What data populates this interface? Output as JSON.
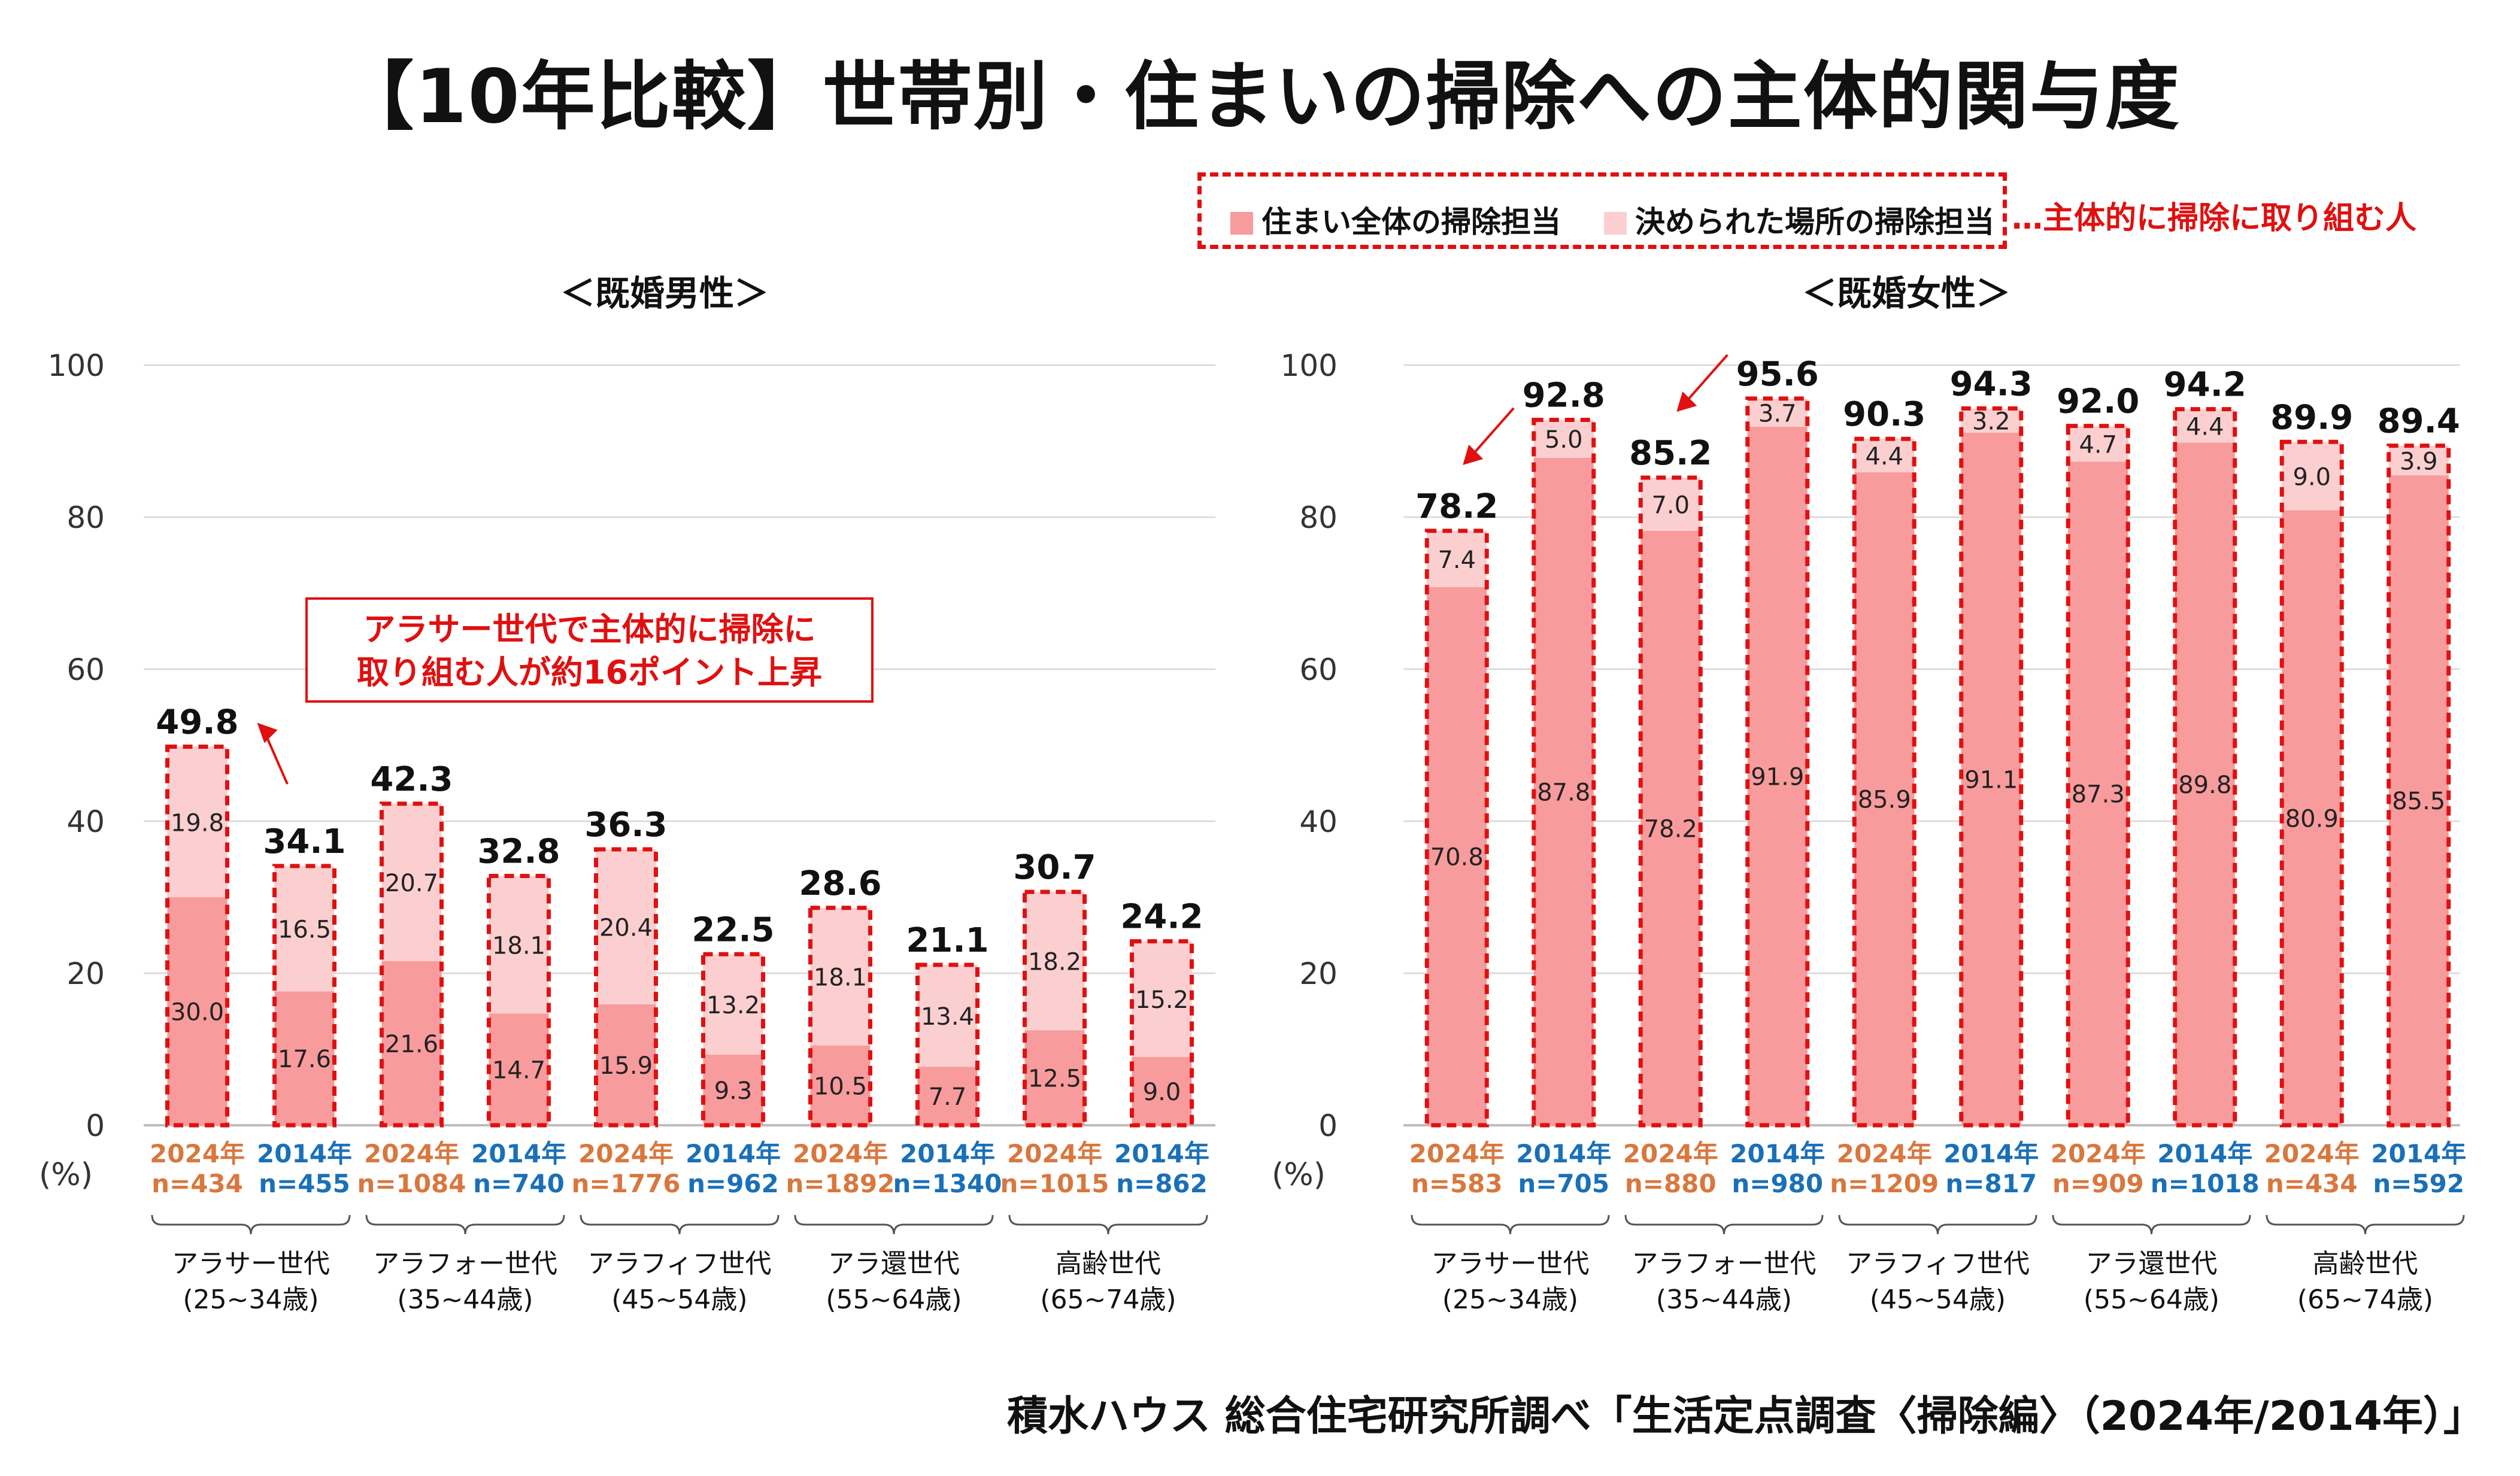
{
  "title": "【10年比較】世帯別・住まいの掃除への主体的関与度",
  "legend": {
    "items": [
      {
        "label": "住まい全体の掃除担当",
        "color": "#f79b9d"
      },
      {
        "label": "決められた場所の掃除担当",
        "color": "#fbcfd0"
      }
    ],
    "dashed_label": "…主体的に掃除に取り組む人",
    "dashed_color": "#e01010"
  },
  "source": "積水ハウス 総合住宅研究所調べ「生活定点調査〈掃除編〉（2024年/2014年）」",
  "colors": {
    "color_2024": "#d9773d",
    "color_2014": "#1a70b8",
    "annotation": "#e01010"
  },
  "annotation": {
    "line1": "アラサー世代で主体的に掃除に",
    "line2": "取り組む人が約16ポイント上昇"
  },
  "chart_data": [
    {
      "type": "bar",
      "stacked": true,
      "title": "＜既婚男性＞",
      "ylabel": "(%)",
      "ylim": [
        0,
        100
      ],
      "yticks": [
        "0",
        "20",
        "40",
        "60",
        "80",
        "100"
      ],
      "grid": true,
      "groups": [
        {
          "line1": "アラサー世代",
          "line2": "(25~34歳)"
        },
        {
          "line1": "アラフォー世代",
          "line2": "(35~44歳)"
        },
        {
          "line1": "アラフィフ世代",
          "line2": "(45~54歳)"
        },
        {
          "line1": "アラ還世代",
          "line2": "(55~64歳)"
        },
        {
          "line1": "高齢世代",
          "line2": "(65~74歳)"
        }
      ],
      "bars": [
        {
          "year": "2024年",
          "n": "n=434",
          "whole": 30.0,
          "place": 19.8,
          "total": 49.8,
          "whole_label": "30.0",
          "place_label": "19.8",
          "total_label": "49.8"
        },
        {
          "year": "2014年",
          "n": "n=455",
          "whole": 17.6,
          "place": 16.5,
          "total": 34.1,
          "whole_label": "17.6",
          "place_label": "16.5",
          "total_label": "34.1"
        },
        {
          "year": "2024年",
          "n": "n=1084",
          "whole": 21.6,
          "place": 20.7,
          "total": 42.3,
          "whole_label": "21.6",
          "place_label": "20.7",
          "total_label": "42.3"
        },
        {
          "year": "2014年",
          "n": "n=740",
          "whole": 14.7,
          "place": 18.1,
          "total": 32.8,
          "whole_label": "14.7",
          "place_label": "18.1",
          "total_label": "32.8"
        },
        {
          "year": "2024年",
          "n": "n=1776",
          "whole": 15.9,
          "place": 20.4,
          "total": 36.3,
          "whole_label": "15.9",
          "place_label": "20.4",
          "total_label": "36.3"
        },
        {
          "year": "2014年",
          "n": "n=962",
          "whole": 9.3,
          "place": 13.2,
          "total": 22.5,
          "whole_label": "9.3",
          "place_label": "13.2",
          "total_label": "22.5"
        },
        {
          "year": "2024年",
          "n": "n=1892",
          "whole": 10.5,
          "place": 18.1,
          "total": 28.6,
          "whole_label": "10.5",
          "place_label": "18.1",
          "total_label": "28.6"
        },
        {
          "year": "2014年",
          "n": "n=1340",
          "whole": 7.7,
          "place": 13.4,
          "total": 21.1,
          "whole_label": "7.7",
          "place_label": "13.4",
          "total_label": "21.1"
        },
        {
          "year": "2024年",
          "n": "n=1015",
          "whole": 12.5,
          "place": 18.2,
          "total": 30.7,
          "whole_label": "12.5",
          "place_label": "18.2",
          "total_label": "30.7"
        },
        {
          "year": "2014年",
          "n": "n=862",
          "whole": 9.0,
          "place": 15.2,
          "total": 24.2,
          "whole_label": "9.0",
          "place_label": "15.2",
          "total_label": "24.2"
        }
      ]
    },
    {
      "type": "bar",
      "stacked": true,
      "title": "＜既婚女性＞",
      "ylabel": "(%)",
      "ylim": [
        0,
        100
      ],
      "yticks": [
        "0",
        "20",
        "40",
        "60",
        "80",
        "100"
      ],
      "grid": true,
      "groups": [
        {
          "line1": "アラサー世代",
          "line2": "(25~34歳)"
        },
        {
          "line1": "アラフォー世代",
          "line2": "(35~44歳)"
        },
        {
          "line1": "アラフィフ世代",
          "line2": "(45~54歳)"
        },
        {
          "line1": "アラ還世代",
          "line2": "(55~64歳)"
        },
        {
          "line1": "高齢世代",
          "line2": "(65~74歳)"
        }
      ],
      "bars": [
        {
          "year": "2024年",
          "n": "n=583",
          "whole": 70.8,
          "place": 7.4,
          "total": 78.2,
          "whole_label": "70.8",
          "place_label": "7.4",
          "total_label": "78.2"
        },
        {
          "year": "2014年",
          "n": "n=705",
          "whole": 87.8,
          "place": 5.0,
          "total": 92.8,
          "whole_label": "87.8",
          "place_label": "5.0",
          "total_label": "92.8"
        },
        {
          "year": "2024年",
          "n": "n=880",
          "whole": 78.2,
          "place": 7.0,
          "total": 85.2,
          "whole_label": "78.2",
          "place_label": "7.0",
          "total_label": "85.2"
        },
        {
          "year": "2014年",
          "n": "n=980",
          "whole": 91.9,
          "place": 3.7,
          "total": 95.6,
          "whole_label": "91.9",
          "place_label": "3.7",
          "total_label": "95.6"
        },
        {
          "year": "2024年",
          "n": "n=1209",
          "whole": 85.9,
          "place": 4.4,
          "total": 90.3,
          "whole_label": "85.9",
          "place_label": "4.4",
          "total_label": "90.3"
        },
        {
          "year": "2014年",
          "n": "n=817",
          "whole": 91.1,
          "place": 3.2,
          "total": 94.3,
          "whole_label": "91.1",
          "place_label": "3.2",
          "total_label": "94.3"
        },
        {
          "year": "2024年",
          "n": "n=909",
          "whole": 87.3,
          "place": 4.7,
          "total": 92.0,
          "whole_label": "87.3",
          "place_label": "4.7",
          "total_label": "92.0"
        },
        {
          "year": "2014年",
          "n": "n=1018",
          "whole": 89.8,
          "place": 4.4,
          "total": 94.2,
          "whole_label": "89.8",
          "place_label": "4.4",
          "total_label": "94.2"
        },
        {
          "year": "2024年",
          "n": "n=434",
          "whole": 80.9,
          "place": 9.0,
          "total": 89.9,
          "whole_label": "80.9",
          "place_label": "9.0",
          "total_label": "89.9"
        },
        {
          "year": "2014年",
          "n": "n=592",
          "whole": 85.5,
          "place": 3.9,
          "total": 89.4,
          "whole_label": "85.5",
          "place_label": "3.9",
          "total_label": "89.4"
        }
      ]
    }
  ]
}
